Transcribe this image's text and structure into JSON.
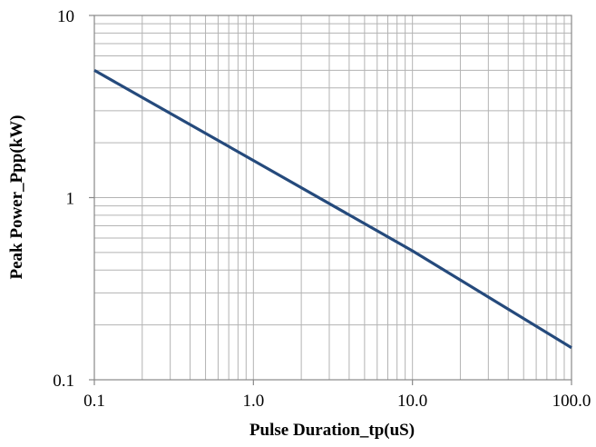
{
  "chart_data": {
    "type": "line",
    "title": "",
    "xlabel": "Pulse Duration_tp(uS)",
    "ylabel": "Peak  Power_Ppp(kW)",
    "x_scale": "log",
    "y_scale": "log",
    "xlim": [
      0.1,
      100
    ],
    "ylim": [
      0.1,
      10
    ],
    "x_ticks": [
      {
        "value": 0.1,
        "label": "0.1"
      },
      {
        "value": 1,
        "label": "1.0"
      },
      {
        "value": 10,
        "label": "10.0"
      },
      {
        "value": 100,
        "label": "100.0"
      }
    ],
    "y_ticks": [
      {
        "value": 0.1,
        "label": "0.1"
      },
      {
        "value": 1,
        "label": "1"
      },
      {
        "value": 10,
        "label": "10"
      }
    ],
    "grid": true,
    "grid_color": "#b3b3b3",
    "axis_color": "#888888",
    "series": [
      {
        "color": "#254a7c",
        "x": [
          0.1,
          1,
          10,
          100
        ],
        "y": [
          5.0,
          1.6,
          0.51,
          0.15
        ]
      }
    ]
  }
}
